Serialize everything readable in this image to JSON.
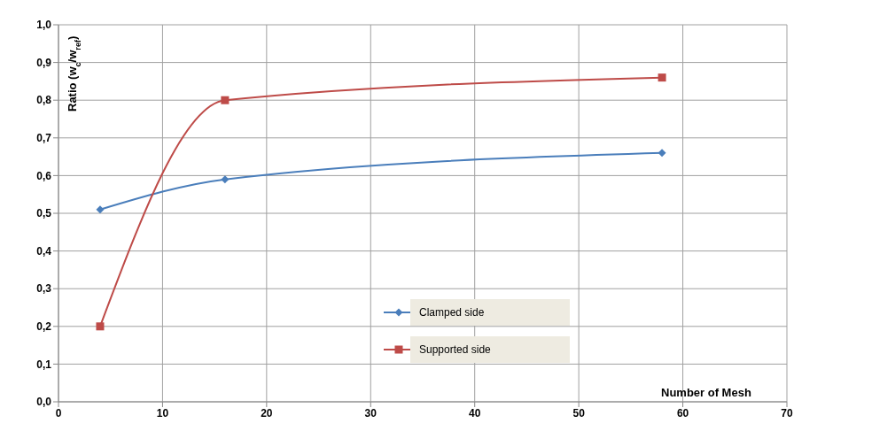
{
  "chart_data": {
    "type": "line",
    "ylabel": "Ratio (w$_{c}$/w$_{ref}$)",
    "xlabel": "Number of Mesh",
    "x": [
      4,
      16,
      58
    ],
    "series": [
      {
        "name": "Clamped side",
        "color": "#4a7ebb",
        "values": [
          0.51,
          0.59,
          0.66
        ],
        "marker": "diamond"
      },
      {
        "name": "Supported side",
        "color": "#be4b48",
        "values": [
          0.2,
          0.8,
          0.86
        ],
        "marker": "square"
      }
    ],
    "xlim": [
      0,
      70
    ],
    "xticks": [
      0,
      10,
      20,
      30,
      40,
      50,
      60,
      70
    ],
    "ylim": [
      0,
      1
    ],
    "yticks": [
      {
        "value": 0,
        "label": "0,0"
      },
      {
        "value": 0.1,
        "label": "0,1"
      },
      {
        "value": 0.2,
        "label": "0,2"
      },
      {
        "value": 0.3,
        "label": "0,3"
      },
      {
        "value": 0.4,
        "label": "0,4"
      },
      {
        "value": 0.5,
        "label": "0,5"
      },
      {
        "value": 0.6,
        "label": "0,6"
      },
      {
        "value": 0.7,
        "label": "0,7"
      },
      {
        "value": 0.8,
        "label": "0,8"
      },
      {
        "value": 0.9,
        "label": "0,9"
      },
      {
        "value": 1,
        "label": "1,0"
      }
    ],
    "grid": true,
    "legend": "bottom"
  }
}
